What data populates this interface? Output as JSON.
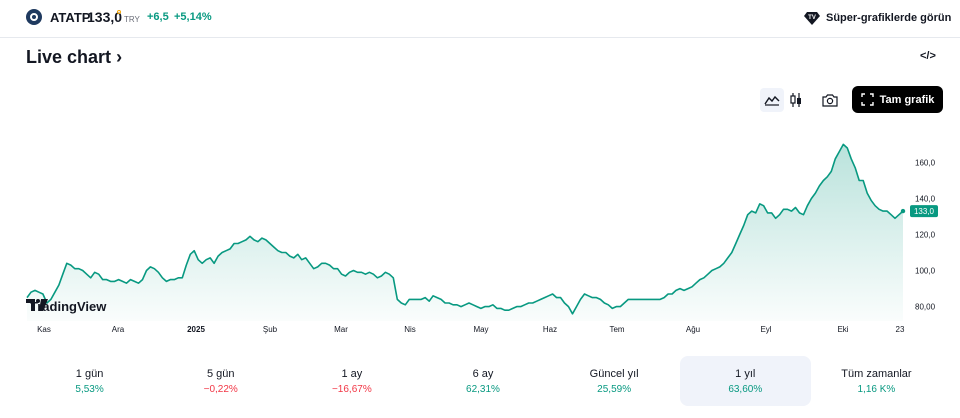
{
  "symbol": {
    "ticker": "ATATP",
    "price": "133,0",
    "currency": "TRY",
    "change": "+6,5",
    "change_percent": "+5,14%"
  },
  "header": {
    "super_charts_label": "Süper-grafiklerde görün"
  },
  "title": "Live chart",
  "title_arrow": "›",
  "embed_icon_label": "</>",
  "toolbar": {
    "icons": [
      "area-chart-icon",
      "candles-icon",
      "camera-icon"
    ],
    "full_chart_label": "Tam grafik"
  },
  "brand": {
    "name": "TradingView"
  },
  "colors": {
    "line": "#089981",
    "accent": "#089981",
    "negative": "#f23645",
    "button": "#000000"
  },
  "chart_data": {
    "type": "area",
    "x_ticks": [
      "Kas",
      "Ara",
      "2025",
      "Şub",
      "Mar",
      "Nis",
      "May",
      "Haz",
      "Tem",
      "Ağu",
      "Eyl",
      "Eki",
      "23"
    ],
    "y_ticks": [
      "80,00",
      "100,0",
      "120,0",
      "140,0",
      "160,0"
    ],
    "ylim": [
      72,
      178
    ],
    "last_label": "133,0",
    "series": [
      {
        "values": [
          85,
          88,
          89,
          88,
          87,
          82,
          84,
          88,
          92,
          98,
          104,
          103,
          101,
          101,
          100,
          98,
          96,
          99,
          98,
          95,
          95,
          94,
          94,
          95,
          94,
          93,
          95,
          94,
          93,
          95,
          100,
          102,
          101,
          99,
          96,
          94,
          95,
          95,
          96,
          96,
          103,
          109,
          111,
          106,
          104,
          106,
          107,
          104,
          108,
          110,
          111,
          112,
          115,
          115,
          116,
          117,
          119,
          117,
          116,
          118,
          117,
          115,
          113,
          111,
          110,
          110,
          108,
          107,
          109,
          106,
          107,
          104,
          101,
          102,
          104,
          104,
          103,
          101,
          101,
          98,
          97,
          99,
          100,
          99,
          99,
          98,
          99,
          98,
          96,
          97,
          99,
          98,
          96,
          84,
          82,
          81,
          84,
          84,
          84,
          84,
          85,
          83,
          86,
          85,
          84,
          82,
          82,
          81,
          81,
          80,
          81,
          82,
          81,
          80,
          79,
          80,
          80,
          81,
          79,
          79,
          78,
          78,
          79,
          80,
          80,
          81,
          82,
          82,
          83,
          84,
          85,
          86,
          87,
          85,
          85,
          82,
          80,
          76,
          80,
          84,
          87,
          86,
          85,
          85,
          84,
          82,
          81,
          79,
          80,
          80,
          82,
          84,
          84,
          84,
          84,
          84,
          84,
          84,
          84,
          84,
          85,
          87,
          87,
          89,
          90,
          89,
          90,
          91,
          93,
          95,
          96,
          98,
          100,
          101,
          102,
          104,
          107,
          110,
          115,
          120,
          125,
          131,
          133,
          132,
          137,
          136,
          132,
          132,
          129,
          131,
          134,
          134,
          133,
          135,
          132,
          131,
          136,
          140,
          143,
          147,
          150,
          152,
          155,
          162,
          166,
          170,
          168,
          162,
          157,
          150,
          150,
          143,
          139,
          136,
          134,
          133,
          133,
          131,
          129,
          131,
          133
        ]
      }
    ]
  },
  "ranges": [
    {
      "label": "1 gün",
      "value": "5,53%",
      "sign": "pos"
    },
    {
      "label": "5 gün",
      "value": "−0,22%",
      "sign": "neg"
    },
    {
      "label": "1 ay",
      "value": "−16,67%",
      "sign": "neg"
    },
    {
      "label": "6 ay",
      "value": "62,31%",
      "sign": "pos"
    },
    {
      "label": "Güncel yıl",
      "value": "25,59%",
      "sign": "pos"
    },
    {
      "label": "1 yıl",
      "value": "63,60%",
      "sign": "pos",
      "selected": true
    },
    {
      "label": "Tüm zamanlar",
      "value": "1,16 K%",
      "sign": "pos"
    }
  ]
}
